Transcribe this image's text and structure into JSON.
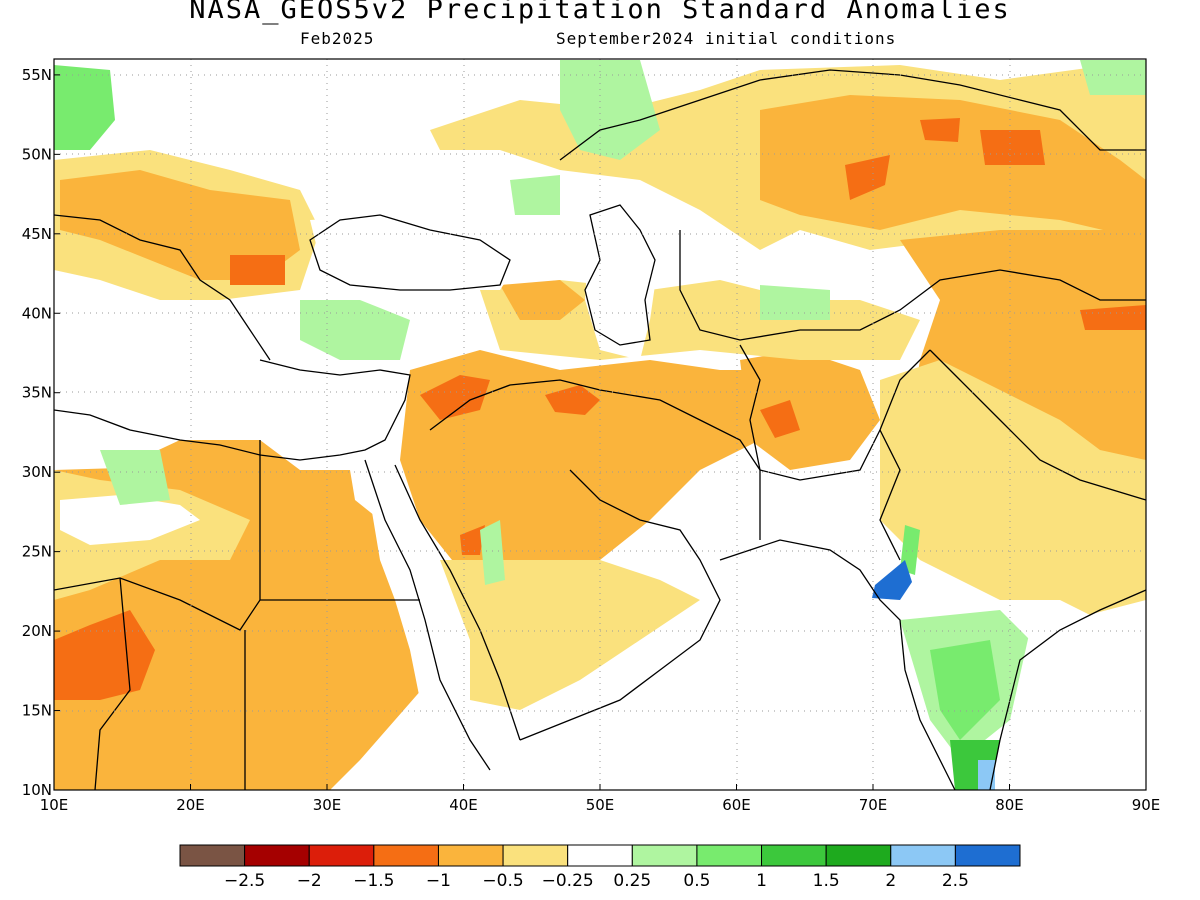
{
  "title": "NASA_GEOS5v2 Precipitation Standard Anomalies",
  "subtitle_left": "Feb2025",
  "subtitle_right": "September2024 initial conditions",
  "map": {
    "lon_range": [
      10,
      90
    ],
    "lat_range": [
      10,
      56
    ],
    "grid": "dotted",
    "lon_ticks": [
      {
        "v": 10,
        "label": "10E"
      },
      {
        "v": 20,
        "label": "20E"
      },
      {
        "v": 30,
        "label": "30E"
      },
      {
        "v": 40,
        "label": "40E"
      },
      {
        "v": 50,
        "label": "50E"
      },
      {
        "v": 60,
        "label": "60E"
      },
      {
        "v": 70,
        "label": "70E"
      },
      {
        "v": 80,
        "label": "80E"
      },
      {
        "v": 90,
        "label": "90E"
      }
    ],
    "lat_ticks": [
      {
        "v": 10,
        "label": "10N"
      },
      {
        "v": 15,
        "label": "15N"
      },
      {
        "v": 20,
        "label": "20N"
      },
      {
        "v": 25,
        "label": "25N"
      },
      {
        "v": 30,
        "label": "30N"
      },
      {
        "v": 35,
        "label": "35N"
      },
      {
        "v": 40,
        "label": "40N"
      },
      {
        "v": 45,
        "label": "45N"
      },
      {
        "v": 50,
        "label": "50N"
      },
      {
        "v": 55,
        "label": "55N"
      }
    ]
  },
  "colorbar": {
    "colors": [
      "#7a5444",
      "#a50000",
      "#dc1e0a",
      "#f56e14",
      "#fab43c",
      "#fae17d",
      "#ffffff",
      "#aff5a0",
      "#78eb6e",
      "#3cc83c",
      "#1eaa1e",
      "#8cc8f5",
      "#1e6ed2"
    ],
    "labels": [
      "−2.5",
      "−2",
      "−1.5",
      "−1",
      "−0.5",
      "−0.25",
      "0.25",
      "0.5",
      "1",
      "1.5",
      "2",
      "2.5"
    ]
  },
  "colors": {
    "orange_light": "#fae17d",
    "orange": "#fab43c",
    "orange_dark": "#f56e14",
    "green_light": "#aff5a0",
    "green": "#78eb6e",
    "green_dark": "#3cc83c",
    "blue": "#1e6ed2",
    "blue_light": "#8cc8f5"
  }
}
